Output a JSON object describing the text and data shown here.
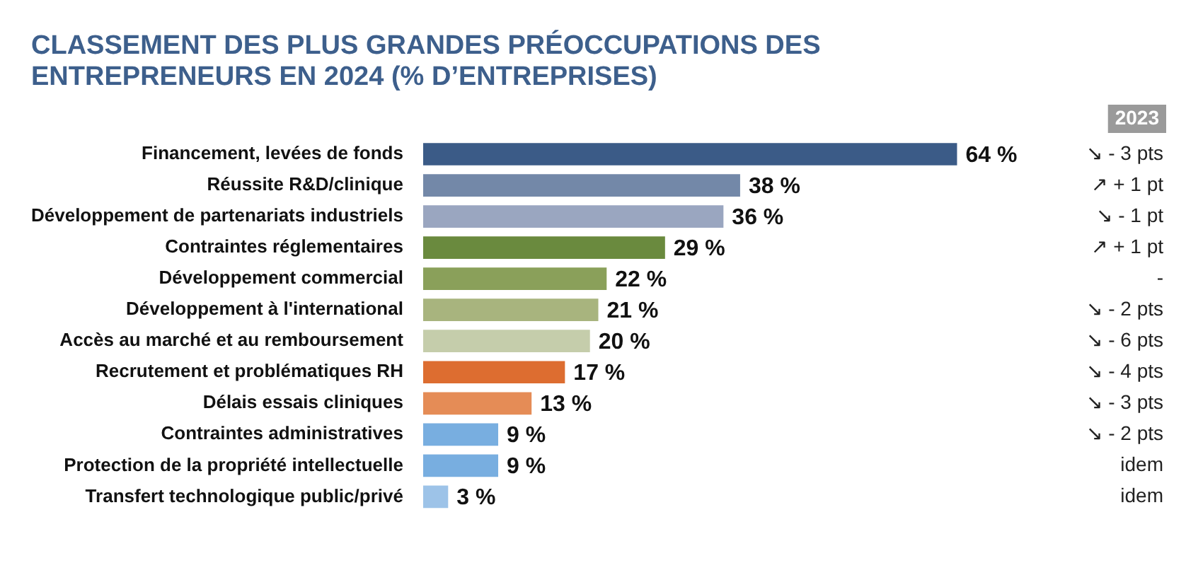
{
  "chart_data": {
    "type": "bar",
    "orientation": "horizontal",
    "title": "CLASSEMENT DES PLUS GRANDES PRÉOCCUPATIONS DES ENTREPRENEURS EN 2024 (% D’ENTREPRISES)",
    "categories": [
      "Financement, levées de fonds",
      "Réussite R&D/clinique",
      "Développement de partenariats industriels",
      "Contraintes réglementaires",
      "Développement commercial",
      "Développement à l'international",
      "Accès au marché et au remboursement",
      "Recrutement et problématiques RH",
      "Délais essais cliniques",
      "Contraintes administratives",
      "Protection de la propriété intellectuelle",
      "Transfert technologique public/privé"
    ],
    "values": [
      64,
      38,
      36,
      29,
      22,
      21,
      20,
      17,
      13,
      9,
      9,
      3
    ],
    "colors": [
      "#3b5b87",
      "#7388a8",
      "#9aa6c0",
      "#6a8a3e",
      "#8aa05a",
      "#a8b47e",
      "#c5cdab",
      "#dd6d30",
      "#e58c56",
      "#78aee0",
      "#78aee0",
      "#9dc3e8"
    ],
    "value_labels": [
      "64 %",
      "38 %",
      "36 %",
      "29 %",
      "22 %",
      "21 %",
      "20 %",
      "17 %",
      "13 %",
      "9 %",
      "9 %",
      "3 %"
    ],
    "annotations": [
      "2023",
      "↘ - 3 pts",
      "↗ + 1 pt",
      "↘ - 1 pt",
      "↗ + 1 pt",
      "-",
      "↘ - 2 pts",
      "↘ - 6 pts",
      "↘ - 4 pts",
      "↘ - 3 pts",
      "↘ - 2 pts",
      "idem",
      "idem"
    ],
    "grid": false,
    "legend": false
  }
}
